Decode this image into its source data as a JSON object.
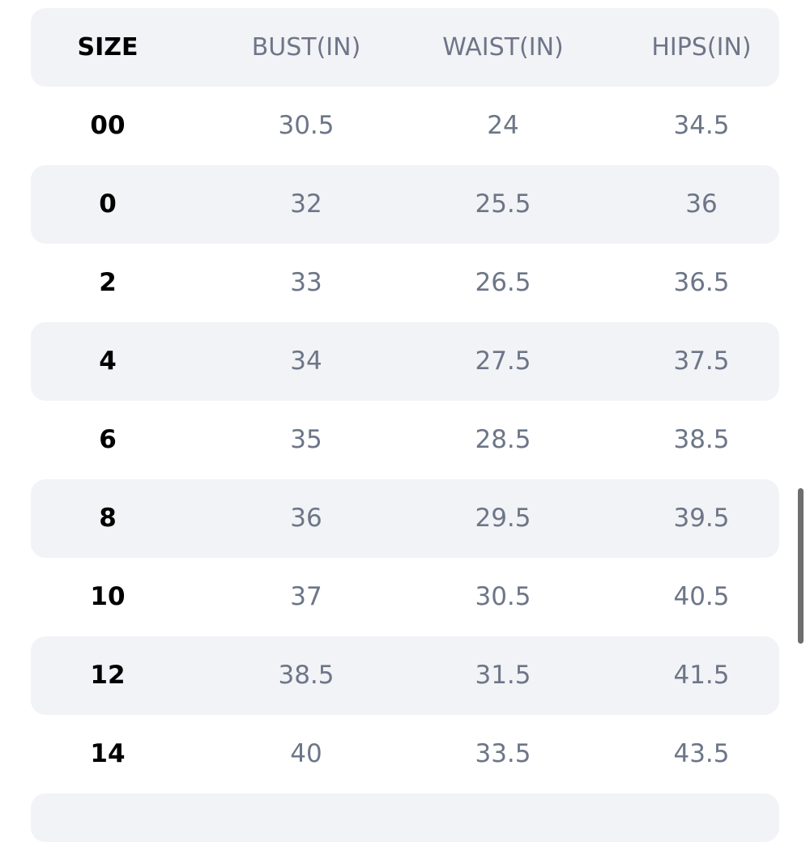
{
  "table": {
    "header": [
      "SIZE",
      "BUST(IN)",
      "WAIST(IN)",
      "HIPS(IN)"
    ],
    "rows": [
      [
        "00",
        "30.5",
        "24",
        "34.5"
      ],
      [
        "0",
        "32",
        "25.5",
        "36"
      ],
      [
        "2",
        "33",
        "26.5",
        "36.5"
      ],
      [
        "4",
        "34",
        "27.5",
        "37.5"
      ],
      [
        "6",
        "35",
        "28.5",
        "38.5"
      ],
      [
        "8",
        "36",
        "29.5",
        "39.5"
      ],
      [
        "10",
        "37",
        "30.5",
        "40.5"
      ],
      [
        "12",
        "38.5",
        "31.5",
        "41.5"
      ],
      [
        "14",
        "40",
        "33.5",
        "43.5"
      ]
    ]
  }
}
